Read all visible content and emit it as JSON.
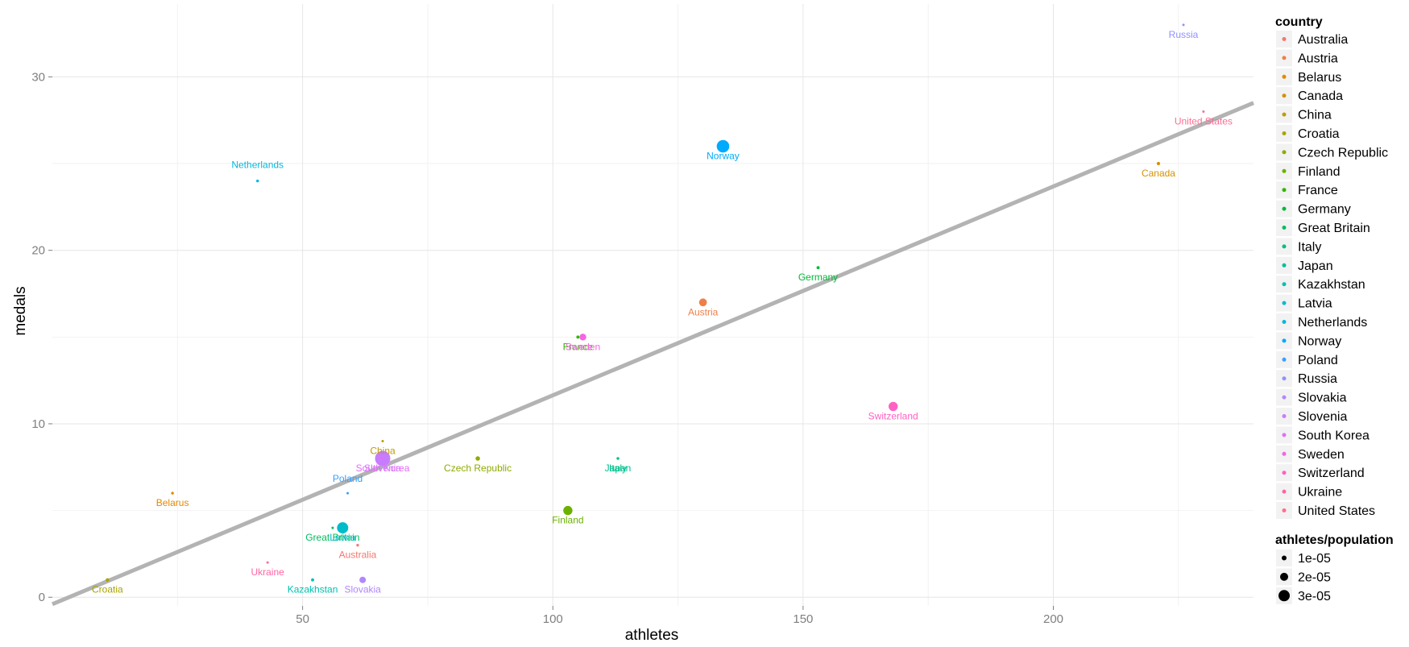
{
  "chart_data": {
    "type": "scatter",
    "xlabel": "athletes",
    "ylabel": "medals",
    "xlim": [
      0,
      240
    ],
    "ylim": [
      -0.5,
      34.2
    ],
    "x_ticks": [
      50,
      100,
      150,
      200
    ],
    "y_ticks": [
      0,
      10,
      20,
      30
    ],
    "grid": true,
    "background": "#ffffff",
    "legend_placement": "right",
    "color_legend_title": "country",
    "size_legend_title": "athletes/population",
    "size_legend": [
      {
        "label": "1e-05",
        "r": 3
      },
      {
        "label": "2e-05",
        "r": 5
      },
      {
        "label": "3e-05",
        "r": 7
      }
    ],
    "trend_line": {
      "x": [
        0,
        240
      ],
      "y": [
        -0.4,
        28.5
      ],
      "color": "#b3b3b3"
    },
    "points": [
      {
        "name": "Australia",
        "athletes": 61,
        "medals": 3,
        "size_level": 0.1,
        "color": "#F8766D"
      },
      {
        "name": "Austria",
        "athletes": 130,
        "medals": 17,
        "size_level": 1.6,
        "color": "#EF7F49"
      },
      {
        "name": "Belarus",
        "athletes": 24,
        "medals": 6,
        "size_level": 0.1,
        "color": "#E38900"
      },
      {
        "name": "Canada",
        "athletes": 221,
        "medals": 25,
        "size_level": 0.3,
        "color": "#D49200"
      },
      {
        "name": "China",
        "athletes": 66,
        "medals": 9,
        "size_level": 0.0,
        "color": "#C09B00"
      },
      {
        "name": "Croatia",
        "athletes": 11,
        "medals": 1,
        "size_level": 0.3,
        "color": "#A9A400"
      },
      {
        "name": "Czech Republic",
        "athletes": 85,
        "medals": 8,
        "size_level": 0.6,
        "color": "#8EAB00"
      },
      {
        "name": "Finland",
        "athletes": 103,
        "medals": 5,
        "size_level": 2.0,
        "color": "#6BB100"
      },
      {
        "name": "France",
        "athletes": 105,
        "medals": 15,
        "size_level": 0.2,
        "color": "#31B600"
      },
      {
        "name": "Germany",
        "athletes": 153,
        "medals": 19,
        "size_level": 0.2,
        "color": "#00BA38"
      },
      {
        "name": "Great Britain",
        "athletes": 56,
        "medals": 4,
        "size_level": 0.0,
        "color": "#00BD5C"
      },
      {
        "name": "Italy",
        "athletes": 113,
        "medals": 8,
        "size_level": 0.1,
        "color": "#00C07B"
      },
      {
        "name": "Japan",
        "athletes": 113,
        "medals": 8,
        "size_level": 0.0,
        "color": "#00C097"
      },
      {
        "name": "Kazakhstan",
        "athletes": 52,
        "medals": 1,
        "size_level": 0.2,
        "color": "#00C0B0"
      },
      {
        "name": "Latvia",
        "athletes": 58,
        "medals": 4,
        "size_level": 2.6,
        "color": "#00BCC8"
      },
      {
        "name": "Netherlands",
        "athletes": 41,
        "medals": 24,
        "size_level": 0.1,
        "color": "#00B8DE"
      },
      {
        "name": "Norway",
        "athletes": 134,
        "medals": 26,
        "size_level": 3.0,
        "color": "#00ABFD"
      },
      {
        "name": "Poland",
        "athletes": 59,
        "medals": 6,
        "size_level": 0.0,
        "color": "#35A2FF"
      },
      {
        "name": "Russia",
        "athletes": 226,
        "medals": 33,
        "size_level": 0.0,
        "color": "#8F91FF"
      },
      {
        "name": "Slovakia",
        "athletes": 62,
        "medals": 1,
        "size_level": 1.2,
        "color": "#B186FF"
      },
      {
        "name": "Slovenia",
        "athletes": 66,
        "medals": 8,
        "size_level": 3.8,
        "color": "#C77CFF"
      },
      {
        "name": "South Korea",
        "athletes": 66,
        "medals": 8,
        "size_level": 0.0,
        "color": "#E26EF7"
      },
      {
        "name": "Sweden",
        "athletes": 106,
        "medals": 15,
        "size_level": 1.3,
        "color": "#F564E3"
      },
      {
        "name": "Switzerland",
        "athletes": 168,
        "medals": 11,
        "size_level": 2.0,
        "color": "#FF61C3"
      },
      {
        "name": "Ukraine",
        "athletes": 43,
        "medals": 2,
        "size_level": 0.0,
        "color": "#FF65A3"
      },
      {
        "name": "United States",
        "athletes": 230,
        "medals": 28,
        "size_level": 0.0,
        "color": "#FF6C91"
      }
    ]
  }
}
